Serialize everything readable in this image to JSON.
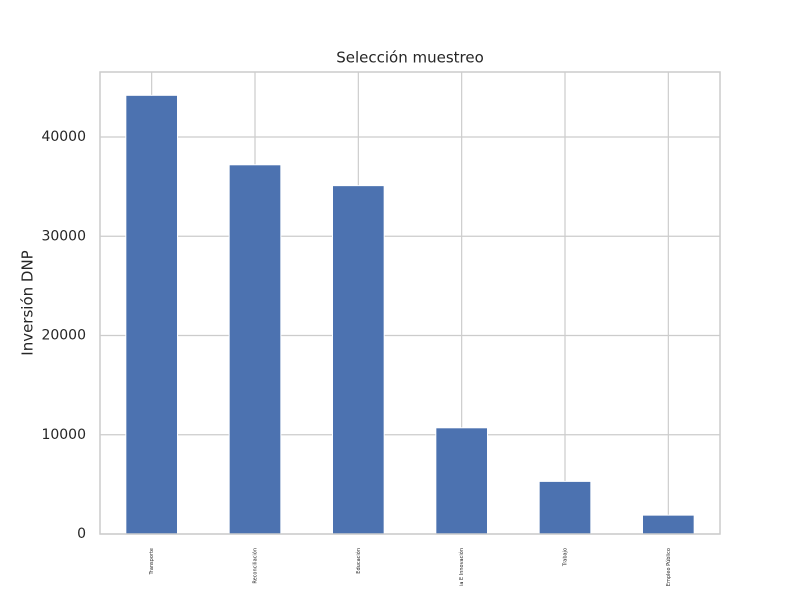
{
  "chart_data": {
    "type": "bar",
    "title": "Selección muestreo",
    "ylabel": "Inversión DNP",
    "categories": [
      "Transporte",
      "Reconciliación",
      "Educación",
      "ia E Innovación",
      "Trabajo",
      "Empleo Público"
    ],
    "values": [
      44200,
      37200,
      35100,
      10700,
      5300,
      1900
    ],
    "color": "#4c72b0",
    "ylim": [
      0,
      46550
    ],
    "yticks": [
      0,
      10000,
      20000,
      30000,
      40000
    ],
    "grid": true
  }
}
